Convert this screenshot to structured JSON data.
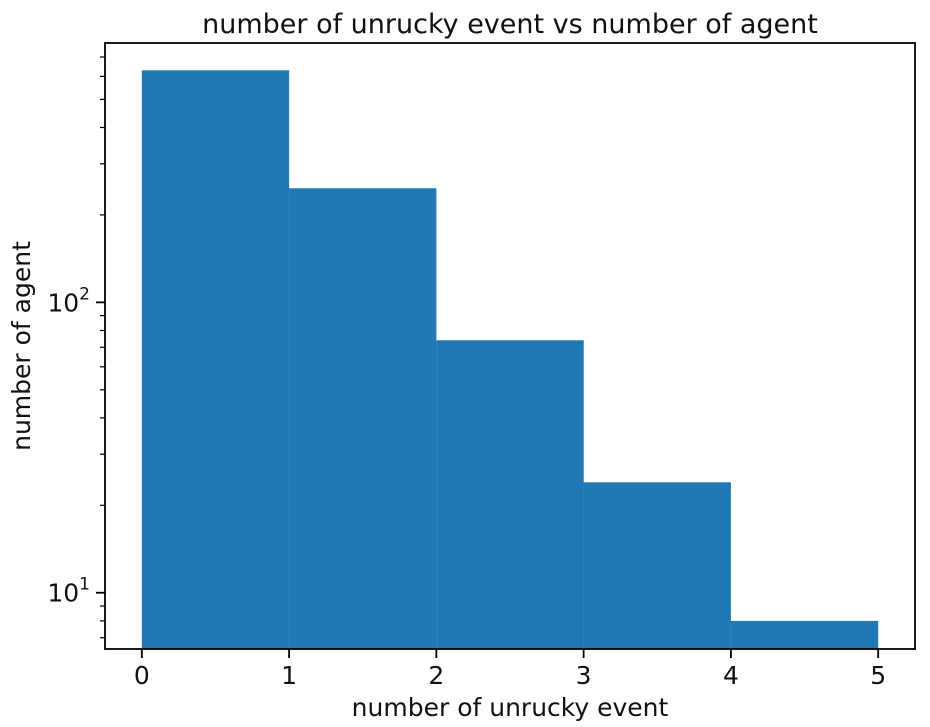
{
  "figure": {
    "background": "#ffffff"
  },
  "chart_data": {
    "type": "bar",
    "subtype": "histogram",
    "title": "number of unrucky event vs number of agent",
    "xlabel": "number of unrucky event",
    "ylabel": "number of agent",
    "yscale": "log",
    "bin_edges": [
      0,
      1,
      2,
      3,
      4,
      5
    ],
    "values": [
      630,
      247,
      74,
      24,
      8
    ],
    "xticks": [
      0,
      1,
      2,
      3,
      4,
      5
    ],
    "yticks": [
      10,
      100
    ],
    "ytick_labels": [
      "10^1",
      "10^2"
    ],
    "xlim": [
      -0.25,
      5.25
    ],
    "ylim": [
      6.4,
      782
    ],
    "grid": false,
    "legend": false,
    "bar_color": "#1f77b4",
    "axis_color": "#000000",
    "text_color": "#000000"
  }
}
